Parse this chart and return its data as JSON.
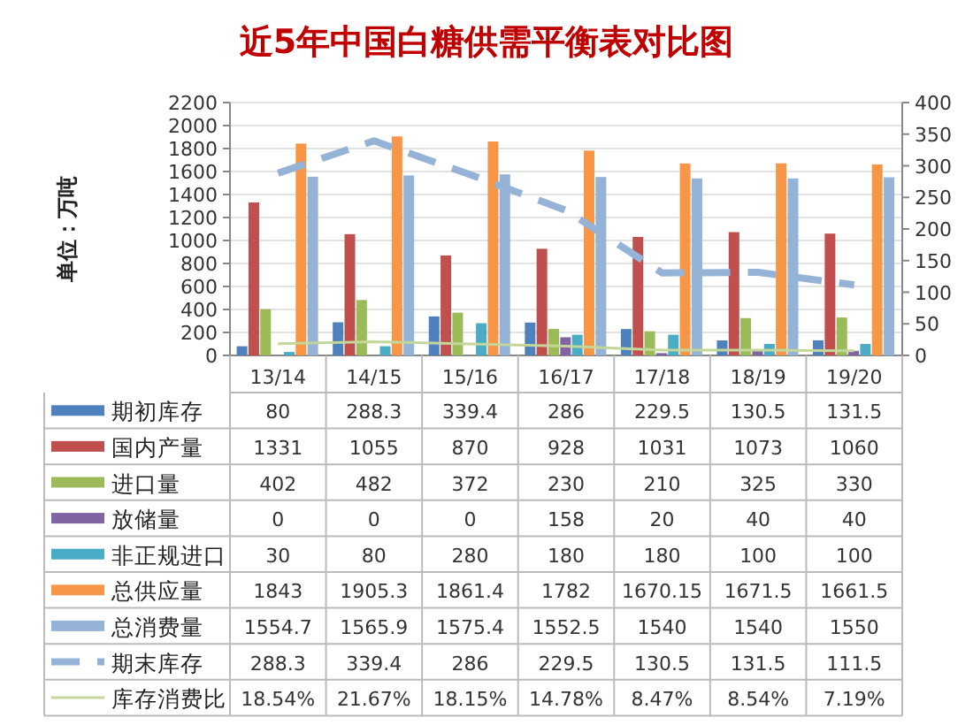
{
  "chart_data": {
    "type": "bar",
    "title": "近5年中国白糖供需平衡表对比图",
    "ylabel": "单位：万吨",
    "categories": [
      "13/14",
      "14/15",
      "15/16",
      "16/17",
      "17/18",
      "18/19",
      "19/20"
    ],
    "series": [
      {
        "name": "期初库存",
        "color": "#4f81bd",
        "values": [
          80,
          288.3,
          339.4,
          286,
          229.5,
          130.5,
          131.5
        ],
        "value_labels": [
          "80",
          "288.3",
          "339.4",
          "286",
          "229.5",
          "130.5",
          "131.5"
        ]
      },
      {
        "name": "国内产量",
        "color": "#c0504d",
        "values": [
          1331,
          1055,
          870,
          928,
          1031,
          1073,
          1060
        ],
        "value_labels": [
          "1331",
          "1055",
          "870",
          "928",
          "1031",
          "1073",
          "1060"
        ]
      },
      {
        "name": "进口量",
        "color": "#9bbb59",
        "values": [
          402,
          482,
          372,
          230,
          210,
          325,
          330
        ],
        "value_labels": [
          "402",
          "482",
          "372",
          "230",
          "210",
          "325",
          "330"
        ]
      },
      {
        "name": "放储量",
        "color": "#8064a2",
        "values": [
          0,
          0,
          0,
          158,
          20,
          40,
          40
        ],
        "value_labels": [
          "0",
          "0",
          "0",
          "158",
          "20",
          "40",
          "40"
        ]
      },
      {
        "name": "非正规进口",
        "color": "#4bacc6",
        "values": [
          30,
          80,
          280,
          180,
          180,
          100,
          100
        ],
        "value_labels": [
          "30",
          "80",
          "280",
          "180",
          "180",
          "100",
          "100"
        ]
      },
      {
        "name": "总供应量",
        "color": "#f79646",
        "values": [
          1843,
          1905.3,
          1861.4,
          1782,
          1670.15,
          1671.5,
          1661.5
        ],
        "value_labels": [
          "1843",
          "1905.3",
          "1861.4",
          "1782",
          "1670.15",
          "1671.5",
          "1661.5"
        ]
      },
      {
        "name": "总消费量",
        "color": "#95b3d7",
        "values": [
          1554.7,
          1565.9,
          1575.4,
          1552.5,
          1540,
          1540,
          1550
        ],
        "value_labels": [
          "1554.7",
          "1565.9",
          "1575.4",
          "1552.5",
          "1540",
          "1540",
          "1550"
        ]
      },
      {
        "name": "期末库存",
        "type": "line",
        "axis": "y2",
        "line_style": "dashed",
        "color": "#95b3d7",
        "values": [
          288.3,
          339.4,
          286,
          229.5,
          130.5,
          131.5,
          111.5
        ],
        "value_labels": [
          "288.3",
          "339.4",
          "286",
          "229.5",
          "130.5",
          "131.5",
          "111.5"
        ]
      },
      {
        "name": "库存消费比",
        "type": "line",
        "axis": "y2",
        "line_style": "solid",
        "color": "#c4d79b",
        "values": [
          18.54,
          21.67,
          18.15,
          14.78,
          8.47,
          8.54,
          7.19
        ],
        "value_labels": [
          "18.54%",
          "21.67%",
          "18.15%",
          "14.78%",
          "8.47%",
          "8.54%",
          "7.19%"
        ]
      }
    ],
    "ylim": [
      0,
      2200
    ],
    "yticks": [
      0,
      200,
      400,
      600,
      800,
      1000,
      1200,
      1400,
      1600,
      1800,
      2000,
      2200
    ],
    "y2lim": [
      0,
      400
    ],
    "y2ticks": [
      0,
      50,
      100,
      150,
      200,
      250,
      300,
      350,
      400
    ],
    "grid": "y",
    "legend": "bottom",
    "marker": "none"
  }
}
